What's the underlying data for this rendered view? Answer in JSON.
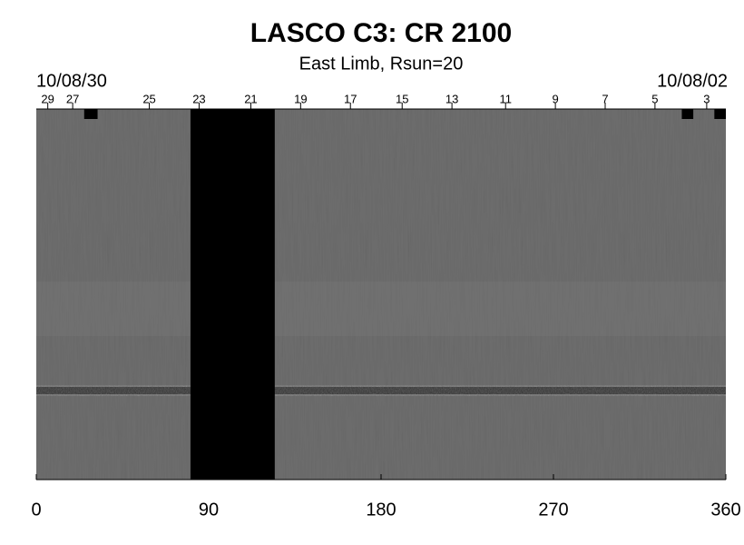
{
  "chart_data": {
    "type": "synoptic-map",
    "title": "LASCO C3: CR 2100",
    "subtitle": "East Limb, Rsun=20",
    "date_left": "10/08/30",
    "date_right": "10/08/02",
    "xlim": [
      0,
      360
    ],
    "xticks": [
      0,
      90,
      180,
      270,
      360
    ],
    "top_ticks": [
      {
        "value": 6,
        "label": "29"
      },
      {
        "value": 19,
        "label": "27"
      },
      {
        "value": 59,
        "label": "25"
      },
      {
        "value": 85,
        "label": "23"
      },
      {
        "value": 112,
        "label": "21"
      },
      {
        "value": 138,
        "label": "19"
      },
      {
        "value": 164,
        "label": "17"
      },
      {
        "value": 191,
        "label": "15"
      },
      {
        "value": 217,
        "label": "13"
      },
      {
        "value": 245,
        "label": "11"
      },
      {
        "value": 271,
        "label": "9"
      },
      {
        "value": 297,
        "label": "7"
      },
      {
        "value": 323,
        "label": "5"
      },
      {
        "value": 350,
        "label": "3"
      }
    ],
    "gaps": [
      [
        80.5,
        124.5
      ]
    ],
    "top_markers": [
      [
        25,
        32
      ],
      [
        337,
        343
      ],
      [
        354,
        360
      ]
    ],
    "background_color": "#6e6e6e",
    "gap_color": "#000000"
  }
}
